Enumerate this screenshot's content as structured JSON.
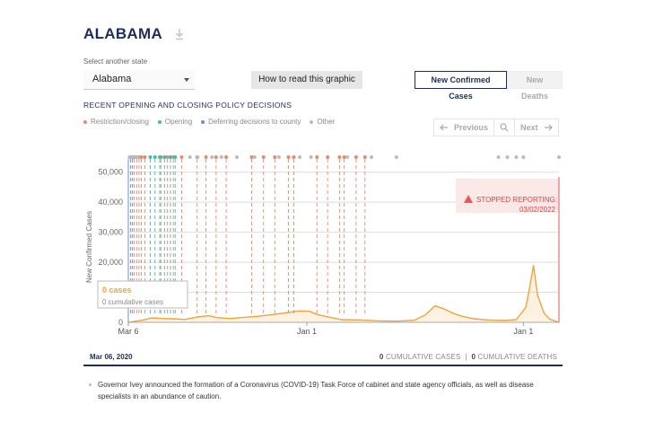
{
  "header": {
    "state_title": "ALABAMA"
  },
  "controls": {
    "select_label": "Select another state",
    "selected_state": "Alabama",
    "howto_label": "How to read this graphic",
    "toggles": [
      {
        "label": "New Confirmed Cases",
        "active": true
      },
      {
        "label": "New Deaths",
        "active": false
      }
    ]
  },
  "policy": {
    "section_title": "RECENT OPENING AND CLOSING POLICY DECISIONS",
    "legend": [
      {
        "label": "Restriction/closing",
        "color": "#e8896a"
      },
      {
        "label": "Opening",
        "color": "#3cbfb0"
      },
      {
        "label": "Deferring decisions to county",
        "color": "#6a8bd9"
      },
      {
        "label": "Other",
        "color": "#bbbbbb"
      }
    ],
    "pager": {
      "prev": "Previous",
      "next": "Next"
    }
  },
  "chart_data": {
    "type": "line",
    "ylabel": "New Confirmed Cases",
    "ylim": [
      0,
      55000
    ],
    "y_ticks": [
      0,
      10000,
      20000,
      30000,
      40000,
      50000
    ],
    "y_tick_labels": [
      "0",
      "10,000",
      "20,000",
      "30,000",
      "40,000",
      "50,000"
    ],
    "x_tick_labels": [
      "Mar 6",
      "Jan 1",
      "Jan 1"
    ],
    "x_range_dates": [
      "2020-03-06",
      "2022-03-02"
    ],
    "x_tick_dates": [
      "2020-03-06",
      "2021-01-01",
      "2022-01-01"
    ],
    "series": [
      {
        "color": "#f0a43a",
        "x_dates": [
          "2020-03-06",
          "2020-04-01",
          "2020-04-15",
          "2020-05-01",
          "2020-05-20",
          "2020-06-10",
          "2020-07-01",
          "2020-07-20",
          "2020-08-05",
          "2020-08-25",
          "2020-09-15",
          "2020-10-10",
          "2020-11-01",
          "2020-11-20",
          "2020-12-05",
          "2020-12-20",
          "2021-01-05",
          "2021-01-20",
          "2021-02-10",
          "2021-03-01",
          "2021-04-01",
          "2021-05-01",
          "2021-06-01",
          "2021-07-01",
          "2021-07-20",
          "2021-08-05",
          "2021-08-20",
          "2021-09-05",
          "2021-09-20",
          "2021-10-10",
          "2021-11-01",
          "2021-12-01",
          "2021-12-20",
          "2022-01-05",
          "2022-01-12",
          "2022-01-18",
          "2022-01-25",
          "2022-02-05",
          "2022-02-15",
          "2022-03-02"
        ],
        "values": [
          0,
          800,
          1500,
          1300,
          1200,
          1000,
          1800,
          2200,
          1500,
          1300,
          1600,
          2000,
          2500,
          3000,
          3400,
          3800,
          3700,
          2500,
          1600,
          900,
          800,
          500,
          400,
          700,
          2500,
          5500,
          4500,
          3000,
          2000,
          1200,
          800,
          600,
          900,
          5000,
          12000,
          19000,
          9000,
          3000,
          1000,
          0
        ]
      }
    ],
    "annotation": {
      "title": "STOPPED REPORTING:",
      "date": "03/02/2022",
      "color": "#e55"
    },
    "tooltip": {
      "value": "0 cases",
      "sub": "0 cumulative cases"
    },
    "policy_events": {
      "restriction_dates": [
        "2020-03-16",
        "2020-03-20",
        "2020-03-24",
        "2020-03-28",
        "2020-04-03",
        "2020-04-30",
        "2020-05-11",
        "2020-05-21",
        "2020-06-04",
        "2020-06-30",
        "2020-07-15",
        "2020-08-01",
        "2020-08-18",
        "2020-09-30",
        "2020-10-20",
        "2020-11-08",
        "2020-12-01",
        "2020-12-10",
        "2021-01-18",
        "2021-02-05",
        "2021-02-25",
        "2021-03-05",
        "2021-03-25",
        "2021-04-09"
      ],
      "opening_dates": [
        "2020-04-12",
        "2020-04-20",
        "2020-04-28",
        "2020-05-06",
        "2020-05-16",
        "2020-05-24"
      ],
      "county_dates": [
        "2020-03-10",
        "2020-03-13"
      ],
      "other_dates": [
        "2020-03-08",
        "2020-03-12",
        "2020-03-18",
        "2020-03-22",
        "2020-06-18",
        "2020-07-01",
        "2020-07-25",
        "2020-08-10",
        "2020-09-05",
        "2020-10-05",
        "2020-11-15",
        "2020-12-20",
        "2021-01-08",
        "2021-03-10",
        "2021-04-20",
        "2021-06-01",
        "2021-11-20",
        "2021-12-05",
        "2021-12-20",
        "2022-01-01",
        "2022-03-02"
      ]
    }
  },
  "footer": {
    "date": "Mar 06, 2020",
    "cumulative_cases_count": "0",
    "cumulative_cases_label": "CUMULATIVE CASES",
    "separator": "|",
    "cumulative_deaths_count": "0",
    "cumulative_deaths_label": "CUMULATIVE DEATHS"
  },
  "event": {
    "text": "Governor Ivey announced the formation of a Coronavirus (COVID-19) Task Force of cabinet and state agency officials, as well as disease specialists in an abundance of caution."
  }
}
